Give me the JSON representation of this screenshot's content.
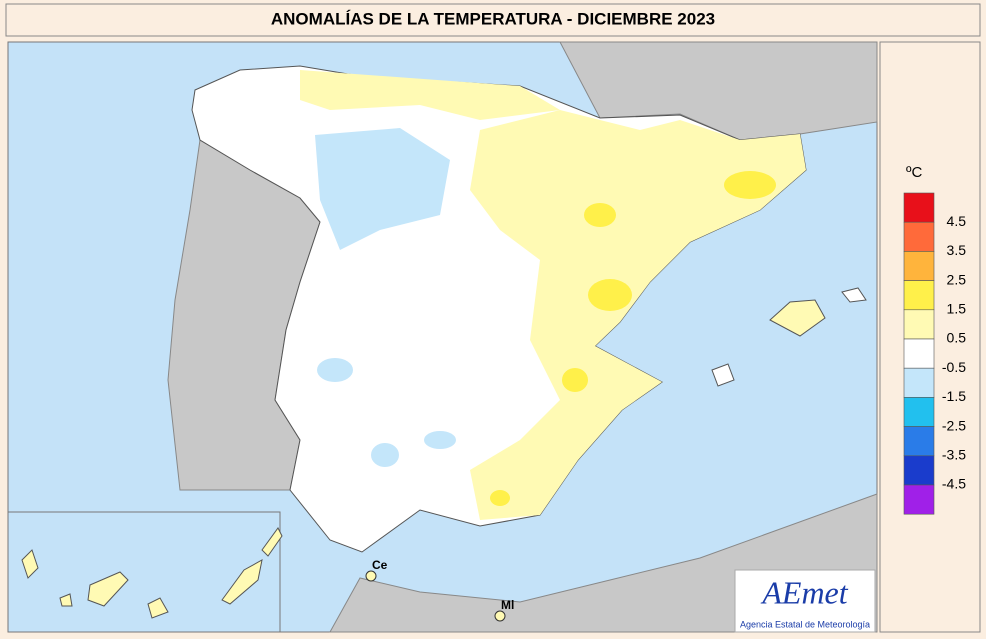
{
  "header": {
    "title": "ANOMALÍAS DE LA TEMPERATURA - DICIEMBRE 2023"
  },
  "legend": {
    "unit": "ºC",
    "labels": [
      "4.5",
      "3.5",
      "2.5",
      "1.5",
      "0.5",
      "-0.5",
      "-1.5",
      "-2.5",
      "-3.5",
      "-4.5"
    ],
    "colors": [
      "#e8101a",
      "#ff6a3a",
      "#ffb43c",
      "#fff04a",
      "#fffab4",
      "#ffffff",
      "#c4e6fa",
      "#22c0ee",
      "#2a7ce8",
      "#1a3ccc",
      "#a020e8"
    ]
  },
  "places": [
    {
      "label": "Ce"
    },
    {
      "label": "Ml"
    }
  ],
  "logo": {
    "name": "AEmet",
    "caption": "Agencia Estatal de Meteorología"
  }
}
